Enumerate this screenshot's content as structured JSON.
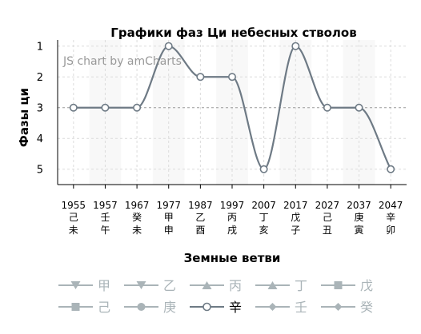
{
  "watermark": "JS chart by amCharts",
  "chart_data": {
    "type": "line",
    "title": "Графики фаз Ци небесных стволов",
    "xlabel": "Земные ветви",
    "ylabel": "Фазы ци",
    "categories": [
      {
        "year": "1955",
        "stem": "己",
        "branch": "未"
      },
      {
        "year": "1957",
        "stem": "壬",
        "branch": "午"
      },
      {
        "year": "1967",
        "stem": "癸",
        "branch": "未"
      },
      {
        "year": "1977",
        "stem": "甲",
        "branch": "申"
      },
      {
        "year": "1987",
        "stem": "乙",
        "branch": "酉"
      },
      {
        "year": "1997",
        "stem": "丙",
        "branch": "戌"
      },
      {
        "year": "2007",
        "stem": "丁",
        "branch": "亥"
      },
      {
        "year": "2017",
        "stem": "戊",
        "branch": "子"
      },
      {
        "year": "2027",
        "stem": "己",
        "branch": "丑"
      },
      {
        "year": "2037",
        "stem": "庚",
        "branch": "寅"
      },
      {
        "year": "2047",
        "stem": "辛",
        "branch": "卯"
      }
    ],
    "y_ticks": [
      "1",
      "2",
      "3",
      "4",
      "5"
    ],
    "ylim": [
      5.5,
      0.8
    ],
    "y_reversed": true,
    "guide_value": 3,
    "grid": true,
    "smoothed": true,
    "series": [
      {
        "name": "辛",
        "values": [
          3,
          3,
          3,
          1,
          2,
          2,
          5,
          1,
          3,
          3,
          5
        ],
        "color": "#6e7a85",
        "active": true
      }
    ],
    "legend": {
      "placement": "bottom",
      "items": [
        {
          "label": "甲",
          "marker": "triangle-down",
          "active": false
        },
        {
          "label": "乙",
          "marker": "triangle-down",
          "active": false
        },
        {
          "label": "丙",
          "marker": "triangle-up",
          "active": false
        },
        {
          "label": "丁",
          "marker": "triangle-up",
          "active": false
        },
        {
          "label": "戊",
          "marker": "square",
          "active": false
        },
        {
          "label": "己",
          "marker": "square",
          "active": false
        },
        {
          "label": "庚",
          "marker": "circle",
          "active": false
        },
        {
          "label": "辛",
          "marker": "circle-open",
          "active": true
        },
        {
          "label": "壬",
          "marker": "diamond",
          "active": false
        },
        {
          "label": "癸",
          "marker": "diamond",
          "active": false
        }
      ],
      "inactive_color": "#aab4b8",
      "active_color": "#6e7a85"
    }
  }
}
